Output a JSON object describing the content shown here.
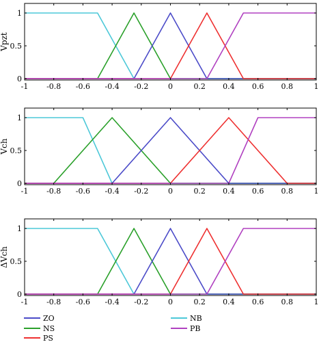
{
  "colors": {
    "ZO": "#4b4bc8",
    "NS": "#2aa02a",
    "PS": "#ee3030",
    "NB": "#4cc8d8",
    "PB": "#b040c0"
  },
  "legend": [
    {
      "key": "ZO",
      "label": "ZO"
    },
    {
      "key": "NS",
      "label": "NS"
    },
    {
      "key": "PS",
      "label": "PS"
    },
    {
      "key": "NB",
      "label": "NB"
    },
    {
      "key": "PB",
      "label": "PB"
    }
  ],
  "chart_data": [
    {
      "type": "line",
      "ylabel": "Vpzt",
      "xlim": [
        -1,
        1
      ],
      "ylim": [
        0,
        1
      ],
      "xticks": [
        "-1",
        "-0.8",
        "-0.6",
        "-0.4",
        "-0.2",
        "0",
        "0.2",
        "0.4",
        "0.6",
        "0.8",
        "1"
      ],
      "yticks": [
        "0",
        "0.5",
        "1"
      ],
      "grid": false,
      "series": [
        {
          "name": "NB",
          "x": [
            -1,
            -0.5,
            -0.25,
            1
          ],
          "y": [
            1,
            1,
            0,
            0
          ]
        },
        {
          "name": "NS",
          "x": [
            -1,
            -0.5,
            -0.25,
            0,
            1
          ],
          "y": [
            0,
            0,
            1,
            0,
            0
          ]
        },
        {
          "name": "ZO",
          "x": [
            -1,
            -0.25,
            0,
            0.25,
            1
          ],
          "y": [
            0,
            0,
            1,
            0,
            0
          ]
        },
        {
          "name": "PS",
          "x": [
            -1,
            0,
            0.25,
            0.5,
            1
          ],
          "y": [
            0,
            0,
            1,
            0,
            0
          ]
        },
        {
          "name": "PB",
          "x": [
            -1,
            0.25,
            0.5,
            1
          ],
          "y": [
            0,
            0,
            1,
            1
          ]
        }
      ]
    },
    {
      "type": "line",
      "ylabel": "Vch",
      "xlim": [
        -1,
        1
      ],
      "ylim": [
        0,
        1
      ],
      "xticks": [
        "-1",
        "-0.8",
        "-0.6",
        "-0.4",
        "-0.2",
        "0",
        "0.2",
        "0.4",
        "0.6",
        "0.8",
        "1"
      ],
      "yticks": [
        "0",
        "0.5",
        "1"
      ],
      "grid": false,
      "series": [
        {
          "name": "NB",
          "x": [
            -1,
            -0.6,
            -0.4,
            1
          ],
          "y": [
            1,
            1,
            0,
            0
          ]
        },
        {
          "name": "NS",
          "x": [
            -1,
            -0.8,
            -0.4,
            0,
            1
          ],
          "y": [
            0,
            0,
            1,
            0,
            0
          ]
        },
        {
          "name": "ZO",
          "x": [
            -1,
            -0.4,
            0,
            0.4,
            1
          ],
          "y": [
            0,
            0,
            1,
            0,
            0
          ]
        },
        {
          "name": "PS",
          "x": [
            -1,
            0,
            0.4,
            0.8,
            1
          ],
          "y": [
            0,
            0,
            1,
            0,
            0
          ]
        },
        {
          "name": "PB",
          "x": [
            -1,
            0.4,
            0.6,
            1
          ],
          "y": [
            0,
            0,
            1,
            1
          ]
        }
      ]
    },
    {
      "type": "line",
      "ylabel": "ΔVch",
      "xlim": [
        -1,
        1
      ],
      "ylim": [
        0,
        1
      ],
      "xticks": [
        "-1",
        "-0.8",
        "-0.6",
        "-0.4",
        "-0.2",
        "0",
        "0.2",
        "0.4",
        "0.6",
        "0.8",
        "1"
      ],
      "yticks": [
        "0",
        "0.5",
        "1"
      ],
      "grid": false,
      "series": [
        {
          "name": "NB",
          "x": [
            -1,
            -0.5,
            -0.25,
            1
          ],
          "y": [
            1,
            1,
            0,
            0
          ]
        },
        {
          "name": "NS",
          "x": [
            -1,
            -0.5,
            -0.25,
            0,
            1
          ],
          "y": [
            0,
            0,
            1,
            0,
            0
          ]
        },
        {
          "name": "ZO",
          "x": [
            -1,
            -0.25,
            0,
            0.25,
            1
          ],
          "y": [
            0,
            0,
            1,
            0,
            0
          ]
        },
        {
          "name": "PS",
          "x": [
            -1,
            0,
            0.25,
            0.5,
            1
          ],
          "y": [
            0,
            0,
            1,
            0,
            0
          ]
        },
        {
          "name": "PB",
          "x": [
            -1,
            0.25,
            0.5,
            1
          ],
          "y": [
            0,
            0,
            1,
            1
          ]
        }
      ]
    }
  ]
}
